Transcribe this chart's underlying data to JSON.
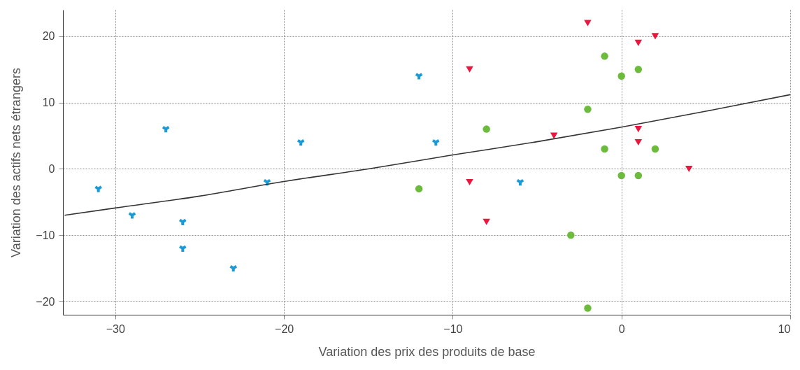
{
  "chart_data": {
    "type": "scatter",
    "xlabel": "Variation des prix des produits de base",
    "ylabel": "Variation des actifs nets étrangers",
    "xlim": [
      -33.1,
      10
    ],
    "ylim": [
      -22,
      24
    ],
    "xticks": [
      -30,
      -20,
      -10,
      0,
      10
    ],
    "yticks": [
      -20,
      -10,
      0,
      10,
      20
    ],
    "grid": true,
    "series": [
      {
        "color": "#1a9bd7",
        "marker": "cross",
        "x": [
          -31,
          -29,
          -27,
          -26,
          -26,
          -23,
          -21,
          -19,
          -12,
          -11,
          -6
        ],
        "values": [
          -3,
          -7,
          6,
          -8,
          -12,
          -15,
          -2,
          4,
          14,
          4,
          -2
        ]
      },
      {
        "color": "#e8173f",
        "marker": "triangle",
        "x": [
          -2,
          1,
          2,
          -9,
          -4,
          1,
          1,
          4,
          -9,
          -8
        ],
        "values": [
          22,
          19,
          20,
          15,
          5,
          6,
          4,
          0,
          -2,
          -8
        ]
      },
      {
        "color": "#6dbb3c",
        "marker": "circle",
        "x": [
          -1,
          0,
          1,
          -2,
          -8,
          -1,
          2,
          0,
          1,
          -12,
          -3,
          -2
        ],
        "values": [
          17,
          14,
          15,
          9,
          6,
          3,
          3,
          -1,
          -1,
          -3,
          -10,
          -21
        ]
      },
      {
        "type": "line",
        "color": "#333333",
        "x": [
          -33,
          -30,
          -25,
          -20,
          -15,
          -10,
          -5,
          0,
          5,
          10
        ],
        "values": [
          -7,
          -5.9,
          -4.1,
          -1.9,
          0,
          2.1,
          4.1,
          6.3,
          8.7,
          11.2
        ]
      }
    ]
  }
}
